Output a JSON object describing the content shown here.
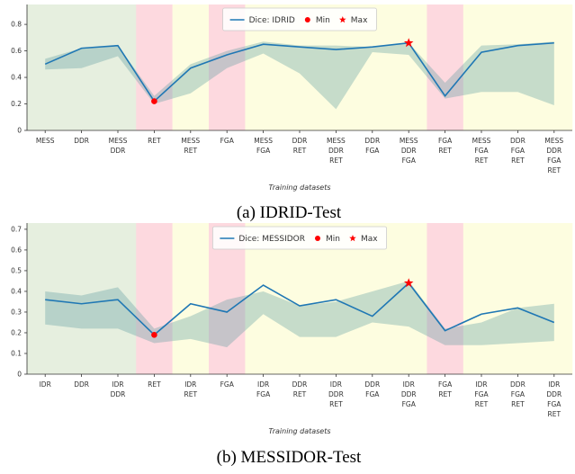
{
  "chart_data": [
    {
      "type": "line",
      "legend": "upper center",
      "categories": [
        "MESS",
        "DDR",
        "MESS\nDDR",
        "RET",
        "MESS\nRET",
        "FGA",
        "MESS\nFGA",
        "DDR\nRET",
        "MESS\nDDR\nRET",
        "DDR\nFGA",
        "MESS\nDDR\nFGA",
        "FGA\nRET",
        "MESS\nFGA\nRET",
        "DDR\nFGA\nRET",
        "MESS\nDDR\nFGA\nRET"
      ],
      "backgrounds": [
        "#e6efdf",
        "#e6efdf",
        "#e6efdf",
        "#fdd9df",
        "#fdfde0",
        "#fdd9df",
        "#fdfde0",
        "#fdfde0",
        "#fdfde0",
        "#fdfde0",
        "#fdfde0",
        "#fdd9df",
        "#fdfde0",
        "#fdfde0",
        "#fdfde0"
      ],
      "series": [
        {
          "name": "Dice: IDRID",
          "color": "#1f77b4",
          "values": [
            0.5,
            0.62,
            0.64,
            0.22,
            0.47,
            0.57,
            0.65,
            0.63,
            0.61,
            0.63,
            0.66,
            0.26,
            0.59,
            0.64,
            0.66
          ]
        }
      ],
      "band": {
        "color": "#5f9ea0",
        "lower": [
          0.46,
          0.47,
          0.56,
          0.2,
          0.28,
          0.47,
          0.58,
          0.43,
          0.16,
          0.59,
          0.57,
          0.24,
          0.29,
          0.29,
          0.19
        ],
        "upper": [
          0.54,
          0.62,
          0.64,
          0.26,
          0.5,
          0.6,
          0.67,
          0.64,
          0.64,
          0.63,
          0.66,
          0.36,
          0.64,
          0.65,
          0.67
        ]
      },
      "min": {
        "name": "Min",
        "category": "RET",
        "value": 0.22,
        "color": "#ff0000"
      },
      "max": {
        "name": "Max",
        "category": "MESS\nDDR\nFGA",
        "value": 0.66,
        "color": "#ff0000"
      },
      "ylim": [
        0,
        0.95
      ],
      "yticks": [
        0,
        0.2,
        0.4,
        0.6,
        0.8
      ],
      "xlabel": "Training datasets",
      "caption": "(a) IDRID-Test"
    },
    {
      "type": "line",
      "legend": "upper center",
      "categories": [
        "IDR",
        "DDR",
        "IDR\nDDR",
        "RET",
        "IDR\nRET",
        "FGA",
        "IDR\nFGA",
        "DDR\nRET",
        "IDR\nDDR\nRET",
        "DDR\nFGA",
        "IDR\nDDR\nFGA",
        "FGA\nRET",
        "IDR\nFGA\nRET",
        "DDR\nFGA\nRET",
        "IDR\nDDR\nFGA\nRET"
      ],
      "backgrounds": [
        "#e6efdf",
        "#e6efdf",
        "#e6efdf",
        "#fdd9df",
        "#fdfde0",
        "#fdd9df",
        "#fdfde0",
        "#fdfde0",
        "#fdfde0",
        "#fdfde0",
        "#fdfde0",
        "#fdd9df",
        "#fdfde0",
        "#fdfde0",
        "#fdfde0"
      ],
      "series": [
        {
          "name": "Dice: MESSIDOR",
          "color": "#1f77b4",
          "values": [
            0.36,
            0.34,
            0.36,
            0.19,
            0.34,
            0.3,
            0.43,
            0.33,
            0.36,
            0.28,
            0.44,
            0.21,
            0.29,
            0.32,
            0.25
          ]
        }
      ],
      "band": {
        "color": "#5f9ea0",
        "lower": [
          0.24,
          0.22,
          0.22,
          0.15,
          0.17,
          0.13,
          0.29,
          0.18,
          0.18,
          0.25,
          0.23,
          0.14,
          0.14,
          0.15,
          0.16
        ],
        "upper": [
          0.4,
          0.38,
          0.42,
          0.22,
          0.28,
          0.36,
          0.4,
          0.33,
          0.35,
          0.4,
          0.45,
          0.22,
          0.25,
          0.32,
          0.34
        ]
      },
      "min": {
        "name": "Min",
        "category": "RET",
        "value": 0.19,
        "color": "#ff0000"
      },
      "max": {
        "name": "Max",
        "category": "IDR\nDDR\nFGA",
        "value": 0.44,
        "color": "#ff0000"
      },
      "ylim": [
        0,
        0.73
      ],
      "yticks": [
        0,
        0.1,
        0.2,
        0.3,
        0.4,
        0.5,
        0.6,
        0.7
      ],
      "xlabel": "Training datasets",
      "caption": "(b) MESSIDOR-Test"
    }
  ]
}
